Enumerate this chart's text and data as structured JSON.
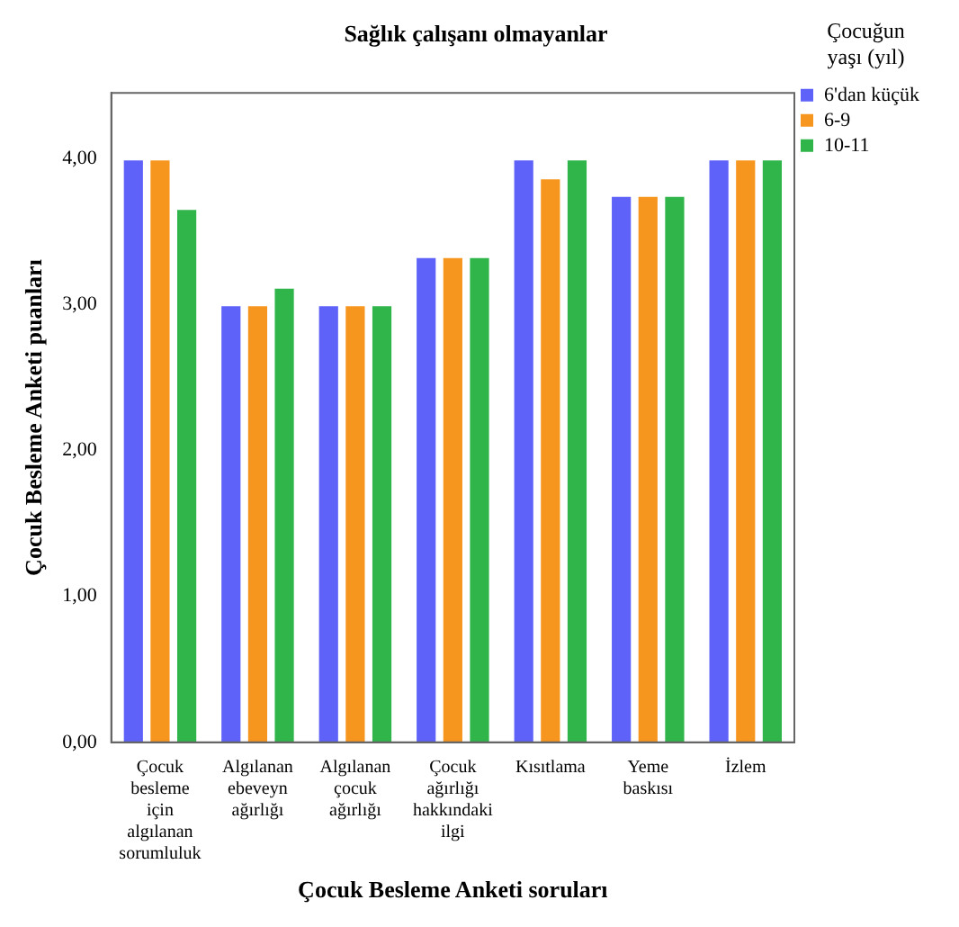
{
  "chart_data": {
    "type": "bar",
    "title": "Sağlık çalışanı olmayanlar",
    "xlabel": "Çocuk Besleme Anketi soruları",
    "ylabel": "Çocuk Besleme Anketi puanları",
    "legend_title": "Çocuğun yaşı (yıl)",
    "categories": [
      "Çocuk besleme için algılanan sorumluluk",
      "Algılanan ebeveyn ağırlığı",
      "Algılanan çocuk ağırlığı",
      "Çocuk ağırlığı hakkındaki ilgi",
      "Kısıtlama",
      "Yeme baskısı",
      "İzlem"
    ],
    "series": [
      {
        "name": "6'dan küçük",
        "color": "#5e62f8",
        "values": [
          4.0,
          3.0,
          3.0,
          3.33,
          4.0,
          3.75,
          4.0
        ]
      },
      {
        "name": "6-9",
        "color": "#f7961e",
        "values": [
          4.0,
          3.0,
          3.0,
          3.33,
          3.87,
          3.75,
          4.0
        ]
      },
      {
        "name": "10-11",
        "color": "#2fb54a",
        "values": [
          3.66,
          3.12,
          3.0,
          3.33,
          4.0,
          3.75,
          4.0
        ]
      }
    ],
    "ylim": [
      0,
      4.45
    ],
    "yticks": [
      {
        "value": 0,
        "label": "0,00"
      },
      {
        "value": 1,
        "label": "1,00"
      },
      {
        "value": 2,
        "label": "2,00"
      },
      {
        "value": 3,
        "label": "3,00"
      },
      {
        "value": 4,
        "label": "4,00"
      }
    ],
    "grid": false,
    "legend": "top right"
  }
}
